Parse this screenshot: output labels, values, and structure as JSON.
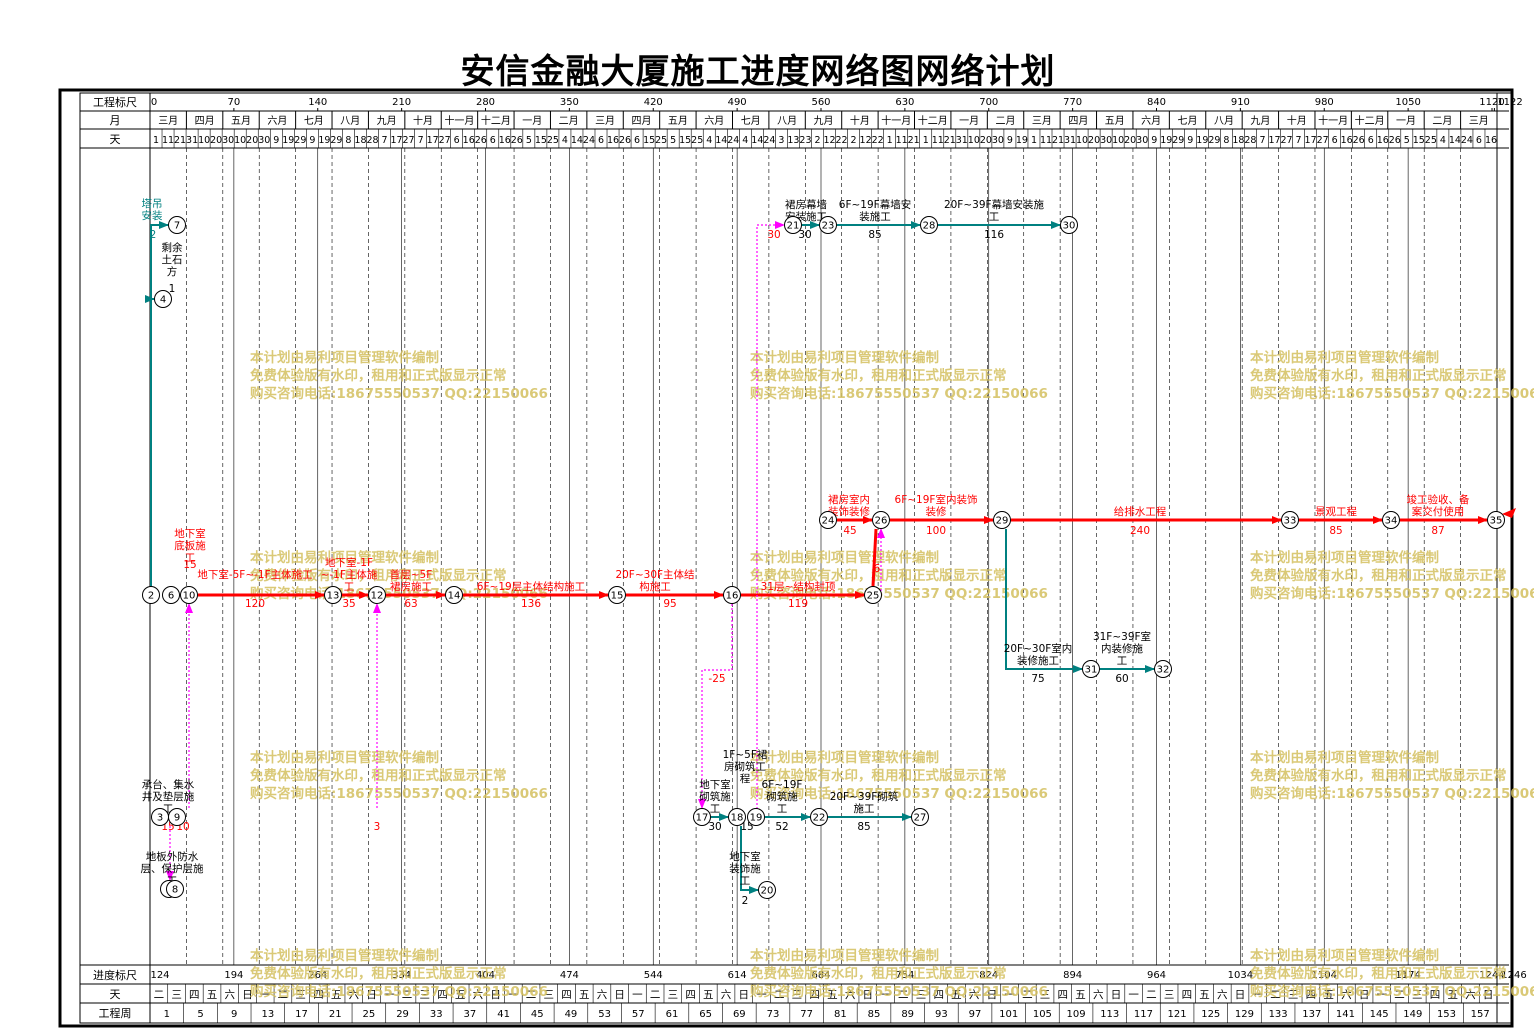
{
  "title": "安信金融大厦施工进度网络图网络计划",
  "header": {
    "row_labels": {
      "scale": "工程标尺",
      "month": "月",
      "day": "天"
    },
    "scale_ticks": [
      "0",
      "70",
      "140",
      "210",
      "280",
      "350",
      "420",
      "490",
      "560",
      "630",
      "700",
      "770",
      "840",
      "910",
      "980",
      "1050",
      "1120",
      "1122"
    ],
    "months": [
      "三月",
      "四月",
      "五月",
      "六月",
      "七月",
      "八月",
      "九月",
      "十月",
      "十一月",
      "十二月",
      "一月",
      "二月",
      "三月",
      "四月",
      "五月",
      "六月",
      "七月",
      "八月",
      "九月",
      "十月",
      "十一月",
      "十二月",
      "一月",
      "二月",
      "三月",
      "四月",
      "五月",
      "六月",
      "七月",
      "八月",
      "九月",
      "十月",
      "十一月",
      "十二月",
      "一月",
      "二月",
      "三月"
    ],
    "days": [
      "1",
      "11",
      "21",
      "31",
      "10",
      "20",
      "30",
      "10",
      "20",
      "30",
      "9",
      "19",
      "29",
      "9",
      "19",
      "29",
      "8",
      "18",
      "28",
      "7",
      "17",
      "27",
      "7",
      "17",
      "27",
      "6",
      "16",
      "26",
      "6",
      "16",
      "26",
      "5",
      "15",
      "25",
      "4",
      "14",
      "24",
      "6",
      "16",
      "26",
      "6",
      "15",
      "25",
      "5",
      "15",
      "25",
      "4",
      "14",
      "24",
      "4",
      "14",
      "24",
      "3",
      "13",
      "23",
      "2",
      "12",
      "22",
      "2",
      "12",
      "22",
      "1",
      "11",
      "21",
      "1",
      "11",
      "21",
      "31",
      "10",
      "20",
      "30",
      "9",
      "19",
      "1",
      "11",
      "21",
      "31",
      "10",
      "20",
      "30",
      "10",
      "20",
      "30",
      "9",
      "19",
      "29",
      "9",
      "19",
      "29",
      "8",
      "18",
      "28",
      "7",
      "17",
      "27",
      "7",
      "17",
      "27",
      "6",
      "16",
      "26",
      "6",
      "16",
      "26",
      "5",
      "15",
      "25",
      "4",
      "14",
      "24",
      "6",
      "16"
    ]
  },
  "footer": {
    "row_labels": {
      "scale": "进度标尺",
      "day": "天",
      "week": "工程周"
    },
    "scale_ticks": [
      "124",
      "194",
      "264",
      "334",
      "404",
      "474",
      "544",
      "614",
      "684",
      "754",
      "824",
      "894",
      "964",
      "1034",
      "1104",
      "1174",
      "1244",
      "1246"
    ],
    "weekdays": [
      "二",
      "三",
      "四",
      "五",
      "六",
      "日",
      "一"
    ],
    "weeks": [
      "1",
      "5",
      "9",
      "13",
      "17",
      "21",
      "25",
      "29",
      "33",
      "37",
      "41",
      "45",
      "49",
      "53",
      "57",
      "61",
      "65",
      "69",
      "73",
      "77",
      "81",
      "85",
      "89",
      "93",
      "97",
      "101",
      "105",
      "109",
      "113",
      "117",
      "121",
      "125",
      "129",
      "133",
      "137",
      "141",
      "145",
      "149",
      "153",
      "157"
    ]
  },
  "watermark": {
    "lines": [
      "本计划由易利项目管理软件编制",
      "免费体验版有水印，租用和正式版显示正常",
      "购买咨询电话:18675550537 QQ:22150066"
    ]
  },
  "colors": {
    "critical": "#ff0000",
    "normal": "#008080",
    "virtual": "#ff00ff",
    "grid": "#000000",
    "watermark": "#d4c060"
  },
  "network": {
    "nodes": [
      {
        "id": "2"
      },
      {
        "id": "7"
      },
      {
        "id": "4"
      },
      {
        "id": "6"
      },
      {
        "id": "10"
      },
      {
        "id": "13"
      },
      {
        "id": "12"
      },
      {
        "id": "14"
      },
      {
        "id": "15"
      },
      {
        "id": "16"
      },
      {
        "id": "25"
      },
      {
        "id": "24"
      },
      {
        "id": "26"
      },
      {
        "id": "29"
      },
      {
        "id": "33"
      },
      {
        "id": "34"
      },
      {
        "id": "35"
      },
      {
        "id": "21"
      },
      {
        "id": "23"
      },
      {
        "id": "28"
      },
      {
        "id": "30"
      },
      {
        "id": "31"
      },
      {
        "id": "32"
      },
      {
        "id": "3"
      },
      {
        "id": "9"
      },
      {
        "id": "5"
      },
      {
        "id": "8"
      },
      {
        "id": "17"
      },
      {
        "id": "18"
      },
      {
        "id": "19"
      },
      {
        "id": "22"
      },
      {
        "id": "27"
      },
      {
        "id": "20"
      }
    ],
    "activity_labels": [
      {
        "id": "tower",
        "text": "塔吊\n安装"
      },
      {
        "id": "tower_d",
        "text": "2"
      },
      {
        "id": "earth",
        "text": "剩余\n土石\n方"
      },
      {
        "id": "earth_d",
        "text": "1"
      },
      {
        "id": "base",
        "text": "地下室\n底板施\n工"
      },
      {
        "id": "base_d",
        "text": "15"
      },
      {
        "id": "b5",
        "text": "地下室-5F~-1F主体施工"
      },
      {
        "id": "b5_d",
        "text": "120"
      },
      {
        "id": "b1",
        "text": "地下室-1F\n~-1F主体施\n工"
      },
      {
        "id": "b1_d",
        "text": "35"
      },
      {
        "id": "podium",
        "text": "首层~5F\n裙房施工"
      },
      {
        "id": "podium_d",
        "text": "63"
      },
      {
        "id": "f619",
        "text": "6F~19层主体结构施工"
      },
      {
        "id": "f619_d",
        "text": "136"
      },
      {
        "id": "f2030",
        "text": "20F~30F主体结\n构施工"
      },
      {
        "id": "f2030_d",
        "text": "95"
      },
      {
        "id": "f31",
        "text": "31层~结构封顶"
      },
      {
        "id": "f31_d",
        "text": "119"
      },
      {
        "id": "neg6",
        "text": "6"
      },
      {
        "id": "podium_in",
        "text": "裙房室内\n装饰装修"
      },
      {
        "id": "podium_in_d",
        "text": "45"
      },
      {
        "id": "in619",
        "text": "6F~19F室内装饰\n装修"
      },
      {
        "id": "in619_d",
        "text": "100"
      },
      {
        "id": "water",
        "text": "给排水工程"
      },
      {
        "id": "water_d",
        "text": "240"
      },
      {
        "id": "land",
        "text": "景观工程"
      },
      {
        "id": "land_d",
        "text": "85"
      },
      {
        "id": "accept",
        "text": "竣工验收、备\n案交付使用"
      },
      {
        "id": "accept_d",
        "text": "87"
      },
      {
        "id": "cw_pod",
        "text": "裙房幕墙\n安装施工"
      },
      {
        "id": "cw_pod_d",
        "text": "30"
      },
      {
        "id": "cw_pod_v",
        "text": "30"
      },
      {
        "id": "cw619",
        "text": "6F~19F幕墙安\n装施工"
      },
      {
        "id": "cw619_d",
        "text": "85"
      },
      {
        "id": "cw2039",
        "text": "20F~39F幕墙安装施\n工"
      },
      {
        "id": "cw2039_d",
        "text": "116"
      },
      {
        "id": "in2030",
        "text": "20F~30F室内\n装修施工"
      },
      {
        "id": "in2030_d",
        "text": "75"
      },
      {
        "id": "in3139",
        "text": "31F~39F室\n内装修施\n工"
      },
      {
        "id": "in3139_d",
        "text": "60"
      },
      {
        "id": "cap",
        "text": "承台、集水\n井及垫层施\n工"
      },
      {
        "id": "cap_d",
        "text": "15"
      },
      {
        "id": "cap_d2",
        "text": "10"
      },
      {
        "id": "wp",
        "text": "地板外防水\n层、保护层施\n工"
      },
      {
        "id": "v3",
        "text": "3"
      },
      {
        "id": "neg25",
        "text": "-25"
      },
      {
        "id": "basem",
        "text": "地下室\n砌筑施\n工"
      },
      {
        "id": "basem_d",
        "text": "30"
      },
      {
        "id": "m15",
        "text": "1F~5F裙\n房砌筑工\n程"
      },
      {
        "id": "m15_d",
        "text": "15"
      },
      {
        "id": "m619",
        "text": "6F~19F\n砌筑施\n工"
      },
      {
        "id": "m619_d",
        "text": "52"
      },
      {
        "id": "m2039",
        "text": "20F~39F砌筑\n施工"
      },
      {
        "id": "m2039_d",
        "text": "85"
      },
      {
        "id": "bdec",
        "text": "地下室\n装饰施\n工"
      },
      {
        "id": "bdec_d",
        "text": "2"
      }
    ]
  }
}
